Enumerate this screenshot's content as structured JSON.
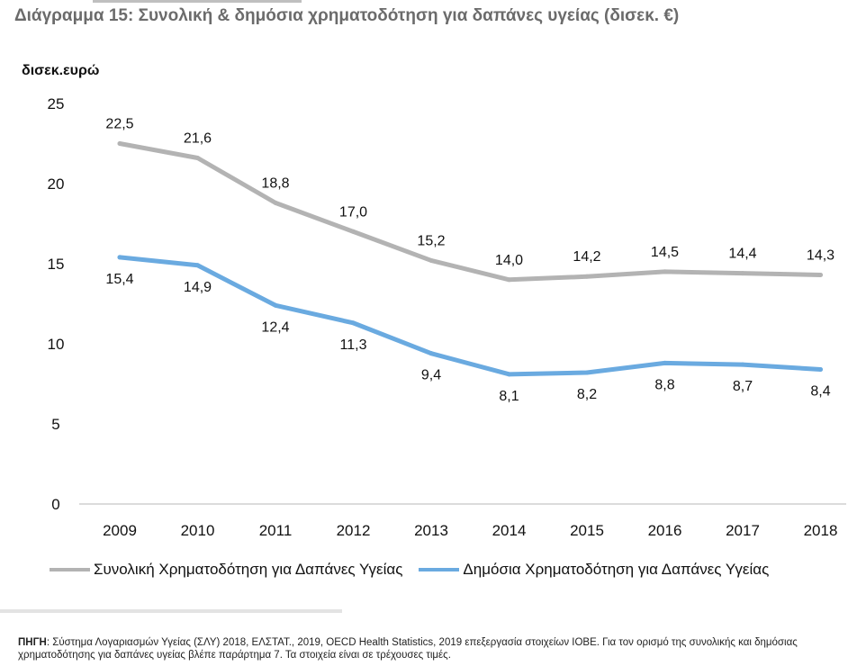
{
  "title": "Διάγραμμα 15: Συνολική & δημόσια χρηματοδότηση για δαπάνες υγείας (δισεκ. €)",
  "source": {
    "label": "ΠΗΓΗ",
    "text": ": Σύστημα Λογαριασμών Υγείας (ΣΛΥ) 2018, ΕΛΣΤΑΤ., 2019, OECD Health Statistics, 2019 επεξεργασία στοιχείων ΙΟΒΕ. Για τον ορισμό της συνολικής και δημόσιας χρηματοδότησης για δαπάνες υγείας βλέπε παράρτημα 7. Τα στοιχεία είναι σε τρέχουσες τιμές."
  },
  "chart_data": {
    "type": "line",
    "title": "Διάγραμμα 15: Συνολική & δημόσια χρηματοδότηση για δαπάνες υγείας (δισεκ. €)",
    "ylabel": "δισεκ.ευρώ",
    "xlabel": "",
    "x": [
      "2009",
      "2010",
      "2011",
      "2012",
      "2013",
      "2014",
      "2015",
      "2016",
      "2017",
      "2018"
    ],
    "ylim": [
      0,
      25
    ],
    "yticks": [
      "0",
      "5",
      "10",
      "15",
      "20",
      "25"
    ],
    "grid": false,
    "legend_position": "bottom",
    "series": [
      {
        "name": "Συνολική Χρηματοδότηση για Δαπάνες Υγείας",
        "color": "#b3b3b3",
        "values": [
          22.5,
          21.6,
          18.8,
          17.0,
          15.2,
          14.0,
          14.2,
          14.5,
          14.4,
          14.3
        ],
        "labels": [
          "22,5",
          "21,6",
          "18,8",
          "17,0",
          "15,2",
          "14,0",
          "14,2",
          "14,5",
          "14,4",
          "14,3"
        ]
      },
      {
        "name": "Δημόσια Χρηματοδότηση για Δαπάνες Υγείας",
        "color": "#6aaae0",
        "values": [
          15.4,
          14.9,
          12.4,
          11.3,
          9.4,
          8.1,
          8.2,
          8.8,
          8.7,
          8.4
        ],
        "labels": [
          "15,4",
          "14,9",
          "12,4",
          "11,3",
          "9,4",
          "8,1",
          "8,2",
          "8,8",
          "8,7",
          "8,4"
        ]
      }
    ]
  }
}
